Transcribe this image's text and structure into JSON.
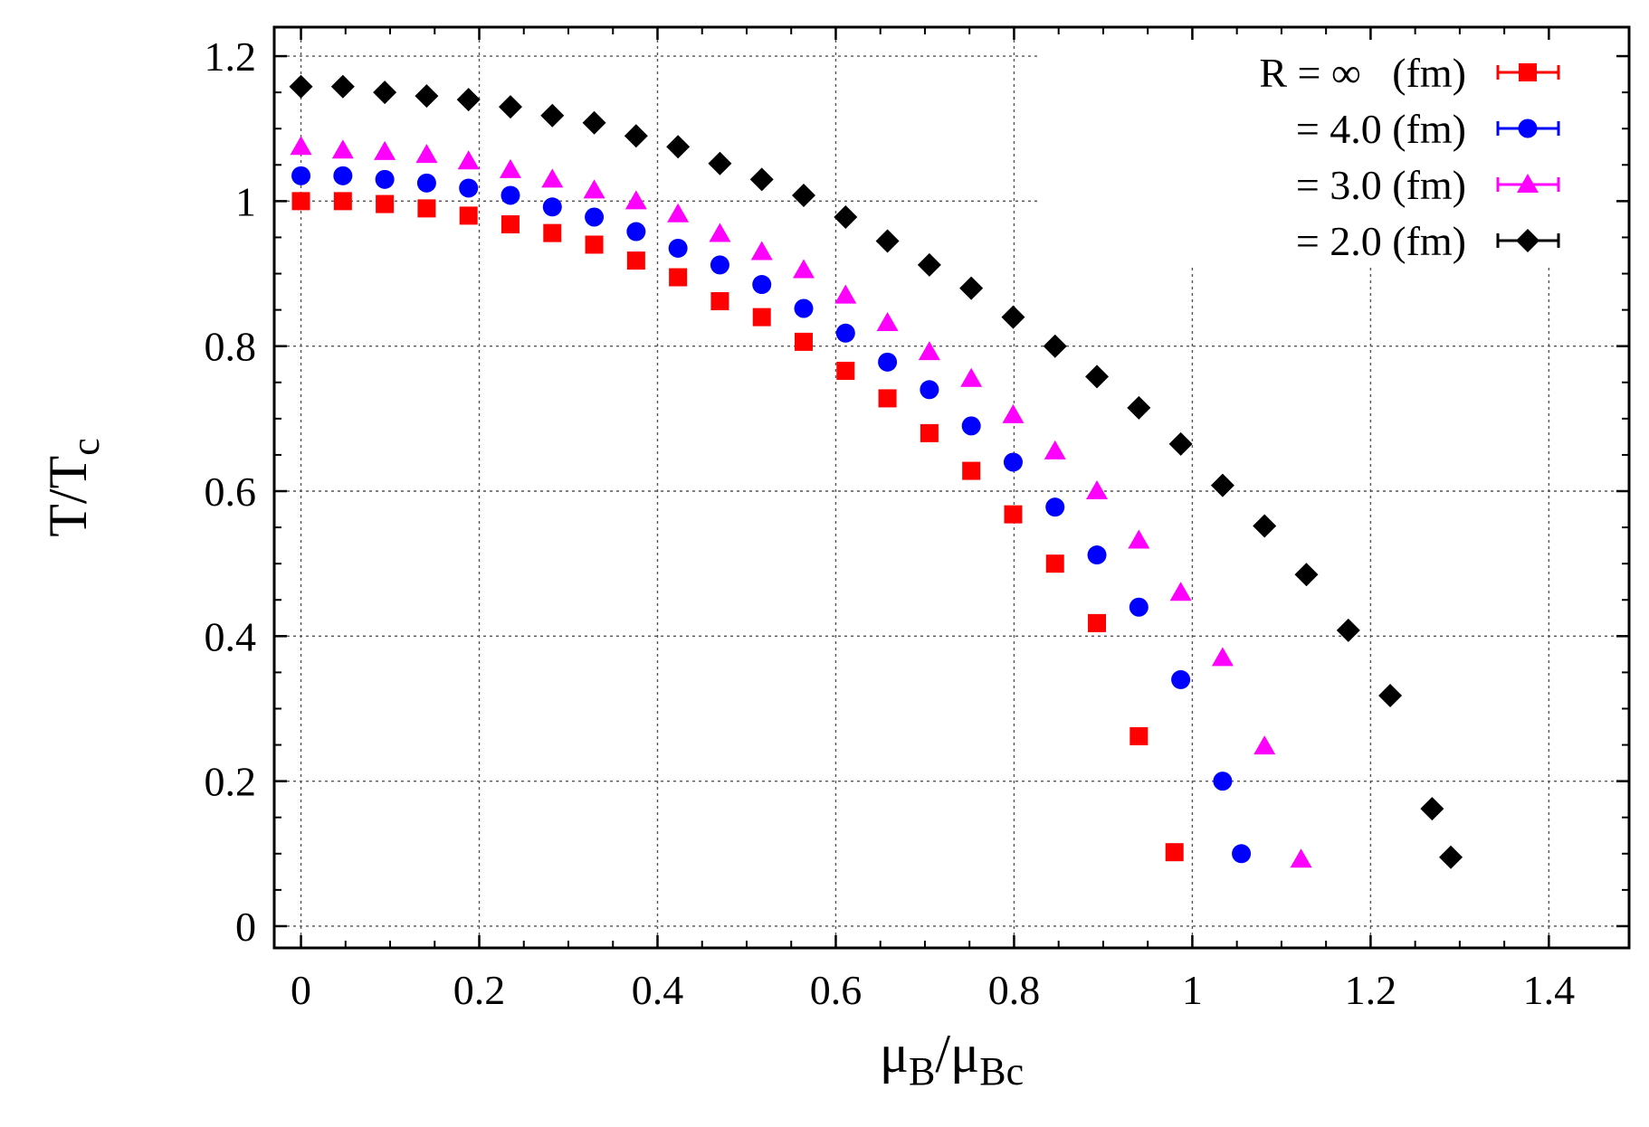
{
  "chart_data": {
    "type": "scatter",
    "title": "",
    "xlabel": {
      "main": "μ",
      "sub1": "B",
      "slash": "/μ",
      "sub2": "Bc"
    },
    "ylabel": {
      "main": "T/T",
      "sub": "c"
    },
    "xlim": [
      -0.03,
      1.49
    ],
    "ylim": [
      -0.03,
      1.24
    ],
    "xticks": [
      0,
      0.2,
      0.4,
      0.6,
      0.8,
      1.0,
      1.2,
      1.4
    ],
    "xtick_labels": [
      "0",
      "0.2",
      "0.4",
      "0.6",
      "0.8",
      "1",
      "1.2",
      "1.4"
    ],
    "yticks": [
      0,
      0.2,
      0.4,
      0.6,
      0.8,
      1.0,
      1.2
    ],
    "ytick_labels": [
      "0",
      "0.2",
      "0.4",
      "0.6",
      "0.8",
      "1",
      "1.2"
    ],
    "grid": true,
    "legend_position": "top-right",
    "series": [
      {
        "name": "R = ∞   (fm)",
        "marker": "square",
        "color": "#ff0000",
        "x": [
          0,
          0.047,
          0.094,
          0.141,
          0.188,
          0.235,
          0.282,
          0.329,
          0.376,
          0.423,
          0.47,
          0.517,
          0.564,
          0.611,
          0.658,
          0.705,
          0.752,
          0.799,
          0.846,
          0.893,
          0.94,
          0.98
        ],
        "y": [
          1.0,
          1.0,
          0.996,
          0.99,
          0.98,
          0.968,
          0.956,
          0.94,
          0.918,
          0.895,
          0.862,
          0.84,
          0.806,
          0.766,
          0.728,
          0.68,
          0.628,
          0.568,
          0.5,
          0.418,
          0.262,
          0.102
        ]
      },
      {
        "name": "= 4.0 (fm)",
        "marker": "circle",
        "color": "#0000ff",
        "x": [
          0,
          0.047,
          0.094,
          0.141,
          0.188,
          0.235,
          0.282,
          0.329,
          0.376,
          0.423,
          0.47,
          0.517,
          0.564,
          0.611,
          0.658,
          0.705,
          0.752,
          0.799,
          0.846,
          0.893,
          0.94,
          0.987,
          1.034,
          1.055
        ],
        "y": [
          1.035,
          1.035,
          1.03,
          1.025,
          1.018,
          1.008,
          0.992,
          0.978,
          0.958,
          0.935,
          0.912,
          0.885,
          0.852,
          0.818,
          0.778,
          0.74,
          0.69,
          0.64,
          0.578,
          0.512,
          0.44,
          0.34,
          0.2,
          0.1
        ]
      },
      {
        "name": "= 3.0 (fm)",
        "marker": "triangle",
        "color": "#ff00ff",
        "x": [
          0,
          0.047,
          0.094,
          0.141,
          0.188,
          0.235,
          0.282,
          0.329,
          0.376,
          0.423,
          0.47,
          0.517,
          0.564,
          0.611,
          0.658,
          0.705,
          0.752,
          0.799,
          0.846,
          0.893,
          0.94,
          0.987,
          1.034,
          1.081,
          1.122
        ],
        "y": [
          1.075,
          1.07,
          1.068,
          1.064,
          1.055,
          1.043,
          1.03,
          1.015,
          1.0,
          0.982,
          0.955,
          0.93,
          0.905,
          0.87,
          0.832,
          0.792,
          0.755,
          0.705,
          0.655,
          0.6,
          0.532,
          0.46,
          0.37,
          0.248,
          0.092
        ]
      },
      {
        "name": "= 2.0 (fm)",
        "marker": "diamond",
        "color": "#000000",
        "x": [
          0,
          0.047,
          0.094,
          0.141,
          0.188,
          0.235,
          0.282,
          0.329,
          0.376,
          0.423,
          0.47,
          0.517,
          0.564,
          0.611,
          0.658,
          0.705,
          0.752,
          0.799,
          0.846,
          0.893,
          0.94,
          0.987,
          1.034,
          1.081,
          1.128,
          1.175,
          1.222,
          1.269,
          1.29
        ],
        "y": [
          1.158,
          1.158,
          1.15,
          1.145,
          1.14,
          1.13,
          1.118,
          1.108,
          1.09,
          1.075,
          1.052,
          1.03,
          1.008,
          0.978,
          0.945,
          0.912,
          0.88,
          0.84,
          0.8,
          0.758,
          0.715,
          0.665,
          0.608,
          0.552,
          0.485,
          0.408,
          0.318,
          0.162,
          0.095
        ]
      }
    ]
  }
}
